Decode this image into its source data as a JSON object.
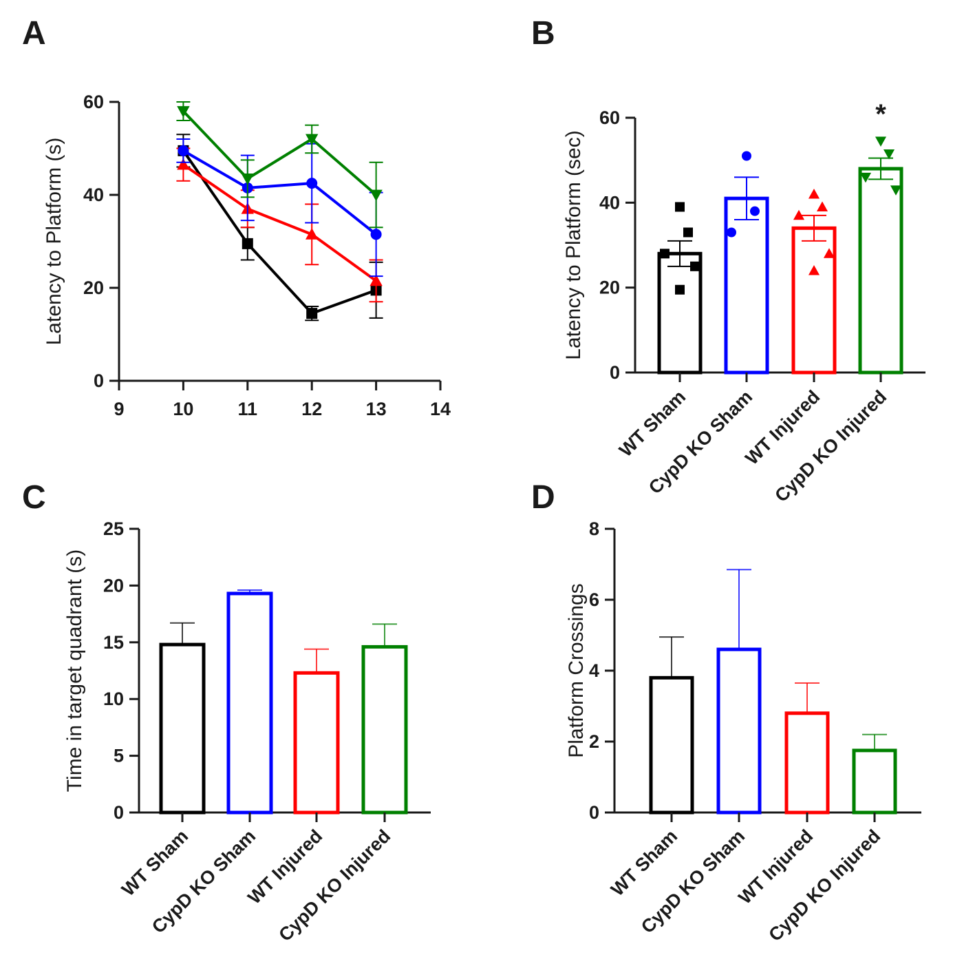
{
  "colors": {
    "WT Sham": "#000000",
    "CypD KO Sham": "#0000ff",
    "WT Injured": "#ff0000",
    "CypD KO Injured": "#008000"
  },
  "chart_data": [
    {
      "panel": "A",
      "type": "line",
      "xlabel": "",
      "ylabel": "Latency to Platform (s)",
      "xlim": [
        9,
        14
      ],
      "ylim": [
        0,
        60
      ],
      "xticks": [
        9,
        10,
        11,
        12,
        13,
        14
      ],
      "yticks": [
        0,
        20,
        40,
        60
      ],
      "x": [
        10,
        11,
        12,
        13
      ],
      "series": [
        {
          "name": "WT Sham",
          "marker": "square",
          "values": [
            49.5,
            29.5,
            14.5,
            19.5
          ],
          "errors": [
            3.5,
            3.5,
            1.5,
            6.0
          ]
        },
        {
          "name": "WT Injured",
          "marker": "triangle-up",
          "values": [
            46.5,
            37,
            31.5,
            21.5
          ],
          "errors": [
            3.5,
            4.0,
            6.5,
            4.5
          ]
        },
        {
          "name": "CypD KO Sham",
          "marker": "circle",
          "values": [
            49.5,
            41.5,
            42.5,
            31.5
          ],
          "errors": [
            2.5,
            7.0,
            8.5,
            9.0
          ]
        },
        {
          "name": "CypD KO Injured",
          "marker": "triangle-down",
          "values": [
            58,
            43.5,
            52,
            40
          ],
          "errors": [
            2.0,
            4.0,
            3.0,
            7.0
          ]
        }
      ]
    },
    {
      "panel": "B",
      "type": "bar",
      "ylabel": "Latency to  Platform (sec)",
      "ylim": [
        0,
        60
      ],
      "yticks": [
        0,
        20,
        40,
        60
      ],
      "categories": [
        "WT Sham",
        "CypD KO Sham",
        "WT Injured",
        "CypD KO Injured"
      ],
      "values": [
        28,
        41,
        34,
        48
      ],
      "errors": [
        3,
        5,
        3,
        2.5
      ],
      "points": [
        [
          39,
          33,
          28,
          25,
          19.5
        ],
        [
          51,
          38,
          33
        ],
        [
          42,
          39,
          37,
          28,
          24
        ],
        [
          54.5,
          51.5,
          46,
          43
        ]
      ],
      "markers": [
        "square",
        "circle",
        "triangle-up",
        "triangle-down"
      ],
      "significance": [
        {
          "category": "CypD KO Injured",
          "label": "*"
        }
      ]
    },
    {
      "panel": "C",
      "type": "bar",
      "ylabel": "Time in target quadrant (s)",
      "ylim": [
        0,
        25
      ],
      "yticks": [
        0,
        5,
        10,
        15,
        20,
        25
      ],
      "categories": [
        "WT Sham",
        "CypD KO Sham",
        "WT Injured",
        "CypD KO Injured"
      ],
      "values": [
        14.8,
        19.3,
        12.3,
        14.6
      ],
      "errors": [
        1.9,
        0.3,
        2.1,
        2.0
      ]
    },
    {
      "panel": "D",
      "type": "bar",
      "ylabel": "Platform Crossings",
      "ylim": [
        0,
        8
      ],
      "yticks": [
        0,
        2,
        4,
        6,
        8
      ],
      "categories": [
        "WT Sham",
        "CypD KO Sham",
        "WT Injured",
        "CypD KO Injured"
      ],
      "values": [
        3.8,
        4.6,
        2.8,
        1.75
      ],
      "errors": [
        1.15,
        2.25,
        0.85,
        0.45
      ]
    }
  ]
}
